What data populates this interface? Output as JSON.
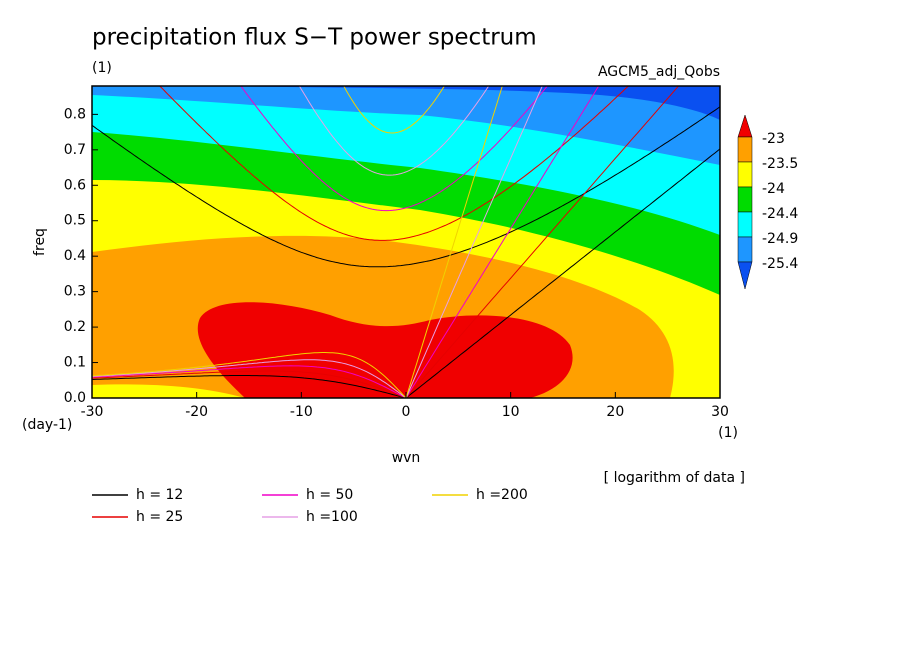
{
  "chart_data": {
    "type": "contour",
    "title": "precipitation flux S−T power spectrum",
    "subtitle": "(1)",
    "annotation": "AGCM5_adj_Qobs",
    "xlabel": "wvn",
    "ylabel": "freq",
    "y_unit": "(day-1)",
    "x_unit": "(1)",
    "note": "[ logarithm of data ]",
    "xlim": [
      -30,
      30
    ],
    "ylim": [
      0,
      0.88
    ],
    "xticks": [
      -30,
      -20,
      -10,
      0,
      10,
      20,
      30
    ],
    "yticks": [
      {
        "value": 0,
        "label": "0.0"
      },
      {
        "value": 0.1,
        "label": "0.1"
      },
      {
        "value": 0.2,
        "label": "0.2"
      },
      {
        "value": 0.3,
        "label": "0.3"
      },
      {
        "value": 0.4,
        "label": "0.4"
      },
      {
        "value": 0.5,
        "label": "0.5"
      },
      {
        "value": 0.6,
        "label": "0.6"
      },
      {
        "value": 0.7,
        "label": "0.7"
      },
      {
        "value": 0.8,
        "label": "0.8"
      }
    ],
    "levels": [
      -23,
      -23.5,
      -24,
      -24.4,
      -24.9,
      -25.4
    ],
    "colors": [
      "#f00000",
      "#ffa000",
      "#ffff00",
      "#00dc00",
      "#00ffff",
      "#1e96ff",
      "#0a50f0"
    ],
    "curves": [
      {
        "name": "h = 12",
        "h": 12,
        "color": "#000000"
      },
      {
        "name": "h = 25",
        "h": 25,
        "color": "#e60000"
      },
      {
        "name": "h = 50",
        "h": 50,
        "color": "#f000c8"
      },
      {
        "name": "h =100",
        "h": 100,
        "color": "#e6a0e6"
      },
      {
        "name": "h =200",
        "h": 200,
        "color": "#f0d200"
      }
    ]
  }
}
